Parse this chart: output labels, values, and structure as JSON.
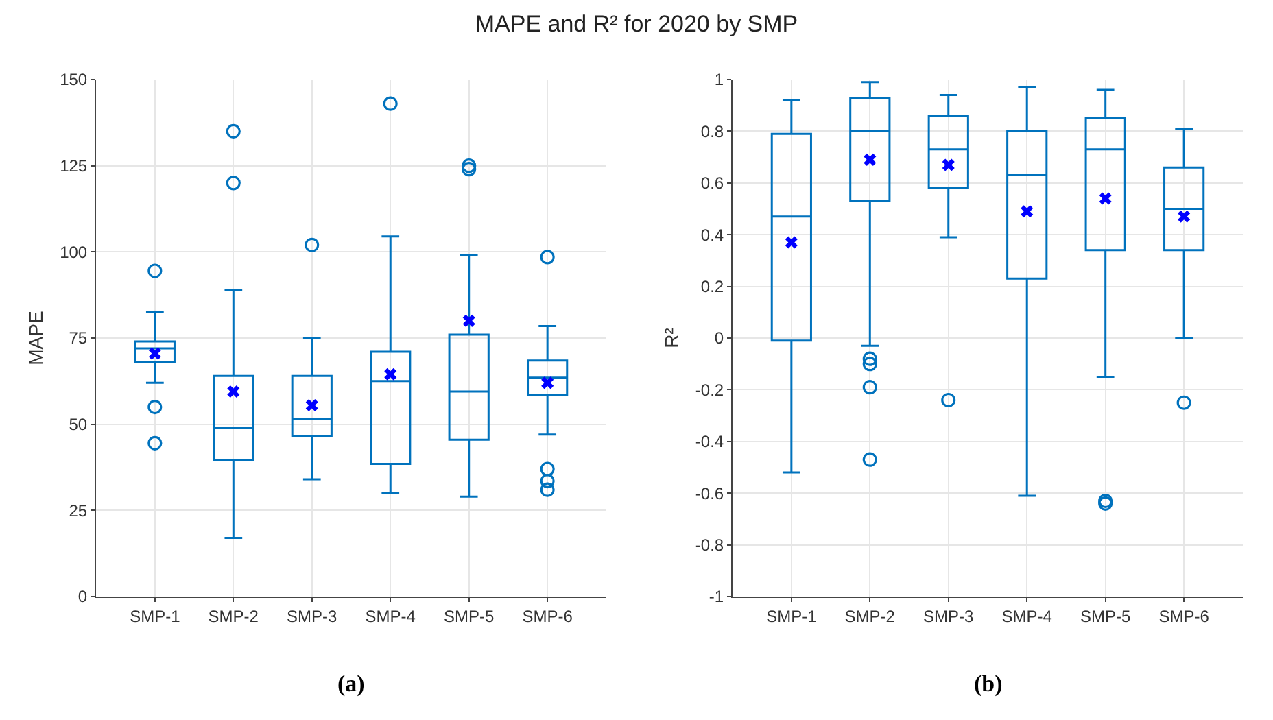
{
  "chart_data": [
    {
      "type": "box",
      "title": "MAPE and R² for 2020 by SMP",
      "ylabel": "MAPE",
      "categories": [
        "SMP-1",
        "SMP-2",
        "SMP-3",
        "SMP-4",
        "SMP-5",
        "SMP-6"
      ],
      "ylim": [
        0,
        150
      ],
      "yticks": [
        0,
        25,
        50,
        75,
        100,
        125,
        150
      ],
      "grid": true,
      "annotations": [
        "(a)"
      ],
      "series": [
        {
          "color": "#0072bd",
          "boxes": [
            {
              "low": 62,
              "q1": 68,
              "median": 72,
              "q3": 74,
              "high": 82.5,
              "mean": 70.5,
              "outliers": [
                94.5,
                55,
                44.5
              ]
            },
            {
              "low": 17,
              "q1": 39.5,
              "median": 49,
              "q3": 64,
              "high": 89,
              "mean": 59.5,
              "outliers": [
                135,
                120
              ]
            },
            {
              "low": 34,
              "q1": 46.5,
              "median": 51.5,
              "q3": 64,
              "high": 75,
              "mean": 55.5,
              "outliers": [
                102
              ]
            },
            {
              "low": 30,
              "q1": 38.5,
              "median": 62.5,
              "q3": 71,
              "high": 104.5,
              "mean": 64.5,
              "outliers": [
                143
              ]
            },
            {
              "low": 29,
              "q1": 45.5,
              "median": 59.5,
              "q3": 76,
              "high": 99,
              "mean": 80,
              "outliers": [
                125,
                124
              ]
            },
            {
              "low": 47,
              "q1": 58.5,
              "median": 63.5,
              "q3": 68.5,
              "high": 78.5,
              "mean": 62,
              "outliers": [
                98.5,
                37,
                33.5,
                31
              ]
            }
          ]
        }
      ]
    },
    {
      "type": "box",
      "ylabel": "R²",
      "categories": [
        "SMP-1",
        "SMP-2",
        "SMP-3",
        "SMP-4",
        "SMP-5",
        "SMP-6"
      ],
      "ylim": [
        -1,
        1
      ],
      "yticks": [
        -1,
        -0.8,
        -0.6,
        -0.4,
        -0.2,
        0,
        0.2,
        0.4,
        0.6,
        0.8,
        1
      ],
      "grid": true,
      "annotations": [
        "(b)"
      ],
      "series": [
        {
          "color": "#0072bd",
          "boxes": [
            {
              "low": -0.52,
              "q1": -0.01,
              "median": 0.47,
              "q3": 0.79,
              "high": 0.92,
              "mean": 0.37
            },
            {
              "low": -0.03,
              "q1": 0.53,
              "median": 0.8,
              "q3": 0.93,
              "high": 0.99,
              "mean": 0.69,
              "outliers": [
                -0.08,
                -0.1,
                -0.19,
                -0.47
              ]
            },
            {
              "low": 0.39,
              "q1": 0.58,
              "median": 0.73,
              "q3": 0.86,
              "high": 0.94,
              "mean": 0.67,
              "outliers": [
                -0.24
              ]
            },
            {
              "low": -0.61,
              "q1": 0.23,
              "median": 0.63,
              "q3": 0.8,
              "high": 0.97,
              "mean": 0.49
            },
            {
              "low": -0.15,
              "q1": 0.34,
              "median": 0.73,
              "q3": 0.85,
              "high": 0.96,
              "mean": 0.54,
              "outliers": [
                -0.63,
                -0.64
              ]
            },
            {
              "low": 0,
              "q1": 0.34,
              "median": 0.5,
              "q3": 0.66,
              "high": 0.81,
              "mean": 0.47,
              "outliers": [
                -0.25
              ]
            }
          ]
        }
      ]
    }
  ]
}
